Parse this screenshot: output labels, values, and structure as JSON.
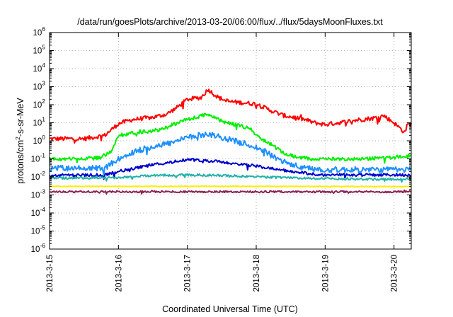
{
  "chart_data": {
    "type": "line",
    "title": "/data/run/goesPlots/archive/2013-03-20/06:00/flux/../flux/5daysMoonFluxes.txt",
    "xlabel": "Coordinated Universal Time (UTC)",
    "ylabel": "protons/cm2-s-sr-MeV",
    "yscale": "log",
    "ylim": [
      1e-06,
      1000000.0
    ],
    "xlim": [
      0.0,
      5.25
    ],
    "x_unit": "days since 2013-3-15 00:00 UTC",
    "xticks": [
      {
        "value": 0,
        "label": "2013-3-15"
      },
      {
        "value": 1,
        "label": "2013-3-16"
      },
      {
        "value": 2,
        "label": "2013-3-17"
      },
      {
        "value": 3,
        "label": "2013-3-18"
      },
      {
        "value": 4,
        "label": "2013-3-19"
      },
      {
        "value": 5,
        "label": "2013-3-20"
      }
    ],
    "yticks": [
      {
        "base": "10",
        "exp": "-6",
        "value": 1e-06
      },
      {
        "base": "10",
        "exp": "-5",
        "value": 1e-05
      },
      {
        "base": "10",
        "exp": "-4",
        "value": 0.0001
      },
      {
        "base": "10",
        "exp": "-3",
        "value": 0.001
      },
      {
        "base": "10",
        "exp": "-2",
        "value": 0.01
      },
      {
        "base": "10",
        "exp": "-1",
        "value": 0.1
      },
      {
        "base": "10",
        "exp": "0",
        "value": 1
      },
      {
        "base": "10",
        "exp": "1",
        "value": 10
      },
      {
        "base": "10",
        "exp": "2",
        "value": 100
      },
      {
        "base": "10",
        "exp": "3",
        "value": 1000
      },
      {
        "base": "10",
        "exp": "4",
        "value": 10000
      },
      {
        "base": "10",
        "exp": "5",
        "value": 100000
      },
      {
        "base": "10",
        "exp": "6",
        "value": 1000000
      }
    ],
    "grid": true,
    "legend": "none",
    "series": [
      {
        "color": "#ff0000",
        "noise": 0.12,
        "x": [
          0,
          0.5,
          0.8,
          1.0,
          1.2,
          1.5,
          1.7,
          1.85,
          2.0,
          2.2,
          2.3,
          2.45,
          2.6,
          2.8,
          3.0,
          3.2,
          3.4,
          3.55,
          3.7,
          3.85,
          4.0,
          4.2,
          4.5,
          4.7,
          4.85,
          5.0,
          5.15,
          5.2,
          5.25
        ],
        "y": [
          1.3,
          1.3,
          2,
          9,
          15,
          20,
          30,
          70,
          200,
          250,
          700,
          250,
          150,
          130,
          110,
          50,
          25,
          20,
          15,
          10,
          8,
          10,
          15,
          18,
          25,
          10,
          3,
          8,
          8
        ]
      },
      {
        "color": "#00ee00",
        "noise": 0.1,
        "x": [
          0,
          0.5,
          0.75,
          0.9,
          1.0,
          1.3,
          1.6,
          1.8,
          2.0,
          2.3,
          2.5,
          2.7,
          2.9,
          3.05,
          3.2,
          3.4,
          3.6,
          3.8,
          4.0,
          4.5,
          5.0,
          5.25
        ],
        "y": [
          0.1,
          0.1,
          0.12,
          0.3,
          2,
          3,
          4,
          8,
          15,
          30,
          12,
          8,
          5,
          1.5,
          0.7,
          0.2,
          0.12,
          0.1,
          0.1,
          0.1,
          0.12,
          0.15
        ]
      },
      {
        "color": "#1e90ff",
        "noise": 0.16,
        "x": [
          0,
          0.8,
          1.0,
          1.3,
          1.6,
          1.8,
          2.0,
          2.3,
          2.6,
          2.9,
          3.1,
          3.3,
          3.5,
          3.7,
          4.0,
          4.5,
          5.0,
          5.25
        ],
        "y": [
          0.03,
          0.03,
          0.1,
          0.3,
          0.6,
          0.8,
          1.5,
          2.5,
          1.2,
          0.6,
          0.3,
          0.1,
          0.05,
          0.03,
          0.025,
          0.025,
          0.025,
          0.025
        ]
      },
      {
        "color": "#0000cc",
        "noise": 0.08,
        "x": [
          0,
          0.8,
          1.0,
          1.4,
          1.8,
          2.0,
          2.3,
          2.6,
          2.9,
          3.2,
          3.5,
          3.8,
          4.0,
          4.5,
          5.0,
          5.25
        ],
        "y": [
          0.012,
          0.013,
          0.02,
          0.04,
          0.07,
          0.09,
          0.08,
          0.06,
          0.045,
          0.03,
          0.02,
          0.015,
          0.013,
          0.013,
          0.013,
          0.013
        ]
      },
      {
        "color": "#20b2aa",
        "noise": 0.06,
        "x": [
          0,
          1.0,
          1.5,
          2.0,
          2.5,
          3.0,
          3.5,
          4.0,
          4.5,
          5.0,
          5.25
        ],
        "y": [
          0.0085,
          0.009,
          0.012,
          0.013,
          0.012,
          0.01,
          0.009,
          0.008,
          0.0075,
          0.0075,
          0.0075
        ]
      },
      {
        "color": "#ffee00",
        "noise": 0.02,
        "x": [
          0,
          2.5,
          5.25
        ],
        "y": [
          0.003,
          0.003,
          0.0029
        ]
      },
      {
        "color": "#8b2252",
        "noise": 0.05,
        "x": [
          0,
          2.5,
          5.25
        ],
        "y": [
          0.0015,
          0.0015,
          0.0015
        ]
      }
    ]
  }
}
